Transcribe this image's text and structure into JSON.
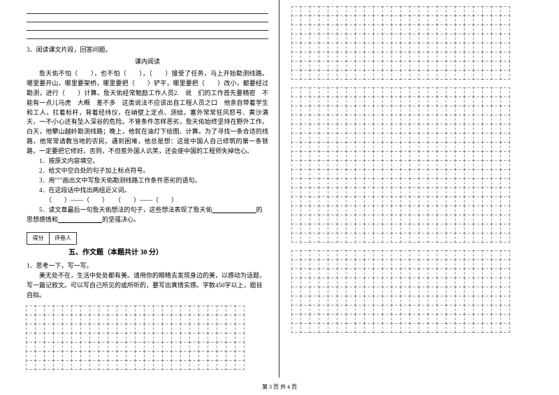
{
  "q3": {
    "prompt": "3、阅读课文片段，回答问题。",
    "subtitle": "课内阅读",
    "passage": "詹天佑不怕（　　），也不怕（　　），（　　）接受了任务，马上开始勘测线路。哪里要开山，哪里要架桥，哪里要把（　　）铲平，哪里要把（　　）改小，都要经过勘测，进行（　　）计算。詹天佑经常勉励工作人员2.　说　们的工作首先要精密　不能有一点儿马虎　大概　差不多　这类说法不应该出自工程人员之口　他亲自带着学生和工人，扛着标杆，背着经纬仪，在峭壁上定点、测绘。塞外常常狂风怒号、黄沙满天，一不小心还有坠入深谷的危险。不管条件怎样恶劣，詹天佑始终坚持在野外工作。白天，他攀山越岭勘测线路；晚上，他就在油灯下绘图、计算。为了寻找一条合适的线路，他常常请教当地的农民。遇到困难，他总是想：这是中国人自己修筑的第一条铁路，一定要把它修好。否则，不但惹外国人讥笑，还会使中国的工程师失掉信心。",
    "subq1": "1．按原文内容填空。",
    "subq2": "2．给文中空白处的句子加上标点符号。",
    "subq3": "3．用\"\"\"画出文中写詹天佑勘测线路工作条件恶劣的语句。",
    "subq4": "4．在这段话中找出两组近义词。",
    "subq4_fill": "（　　）——（　　）　　（　　）——（　　）",
    "subq5_a": "5．读文章最后一句詹天佑想法的句子，这些想法表现了詹天佑",
    "subq5_b": "的思想感情和",
    "subq5_c": "的坚强决心。"
  },
  "score": {
    "label1": "得分",
    "label2": "评卷人"
  },
  "section5": {
    "title": "五、作文题（本题共计 30 分）",
    "q1": "1、思考一下，写一写。",
    "prompt": "美无处不在，生活中处处都有美。请用你的眼睛去发现身边的美，以感动为话题，写一篇记叙文。可以写自己所见的或所听的，要写出真情实感。字数450字以上，题目自拟。"
  },
  "grids": {
    "left_cols": 24,
    "left_rows": 7,
    "right_cols": 24,
    "right_rows_1": 8,
    "right_rows_2": 17,
    "right_rows_3": 9
  },
  "footer": "第 3 页  共 4 页",
  "colors": {
    "text": "#000000",
    "grid_border": "#888888",
    "bg": "#ffffff"
  }
}
